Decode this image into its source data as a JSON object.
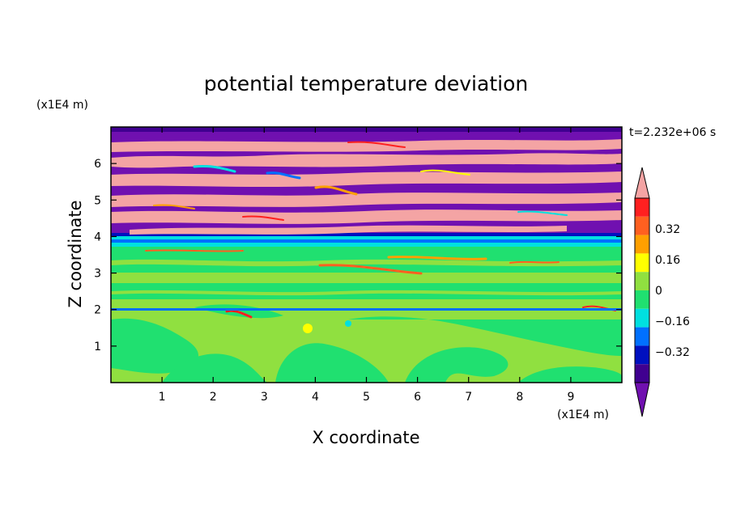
{
  "chart_data": {
    "type": "heatmap",
    "title": "potential temperature deviation",
    "xlabel": "X coordinate",
    "ylabel": "Z coordinate",
    "x_unit": "(x1E4 m)",
    "y_unit": "(x1E4 m)",
    "time_label": "t=2.232e+06 s",
    "xlim": [
      0,
      10
    ],
    "ylim": [
      0,
      7
    ],
    "x_ticks": [
      "1",
      "2",
      "3",
      "4",
      "5",
      "6",
      "7",
      "8",
      "9"
    ],
    "y_ticks": [
      "1",
      "2",
      "3",
      "4",
      "5",
      "6"
    ],
    "colorbar": {
      "levels": [
        -0.48,
        -0.4,
        -0.32,
        -0.24,
        -0.16,
        -0.08,
        0,
        0.08,
        0.16,
        0.24,
        0.32,
        0.4,
        0.48
      ],
      "tick_labels": [
        "0.32",
        "0.16",
        "0",
        "−0.16",
        "−0.32"
      ],
      "colors_top_to_bottom": [
        "#f4a4a4",
        "#ff2020",
        "#ff6020",
        "#ffa000",
        "#ffff00",
        "#90e040",
        "#20e070",
        "#00e0e0",
        "#0070ff",
        "#0010c0",
        "#400090",
        "#7010b0"
      ],
      "extend": "both"
    },
    "grid": false,
    "legend_placement": "right"
  }
}
